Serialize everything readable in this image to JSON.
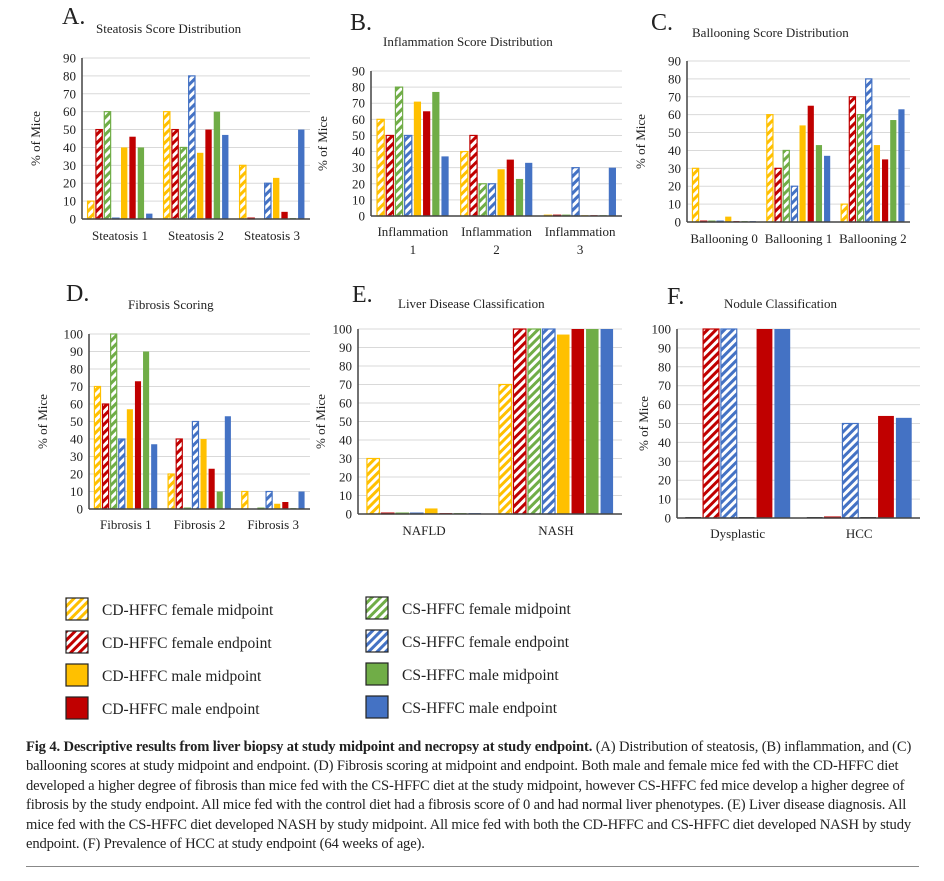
{
  "figure": {
    "caption_bold": "Fig 4. Descriptive results from liver biopsy at study midpoint and necropsy at study endpoint.",
    "caption_text": " (A) Distribution of steatosis, (B) inflammation, and (C) ballooning scores at study midpoint and endpoint. (D) Fibrosis scoring at midpoint and endpoint. Both male and female mice fed with the CD-HFFC diet developed a higher degree of fibrosis than mice fed with the CS-HFFC diet at the study midpoint, however CS-HFFC fed mice develop a higher degree of fibrosis by the study endpoint. All mice fed with the control diet had a fibrosis score of 0 and had normal liver phenotypes. (E) Liver disease diagnosis. All mice fed with the CS-HFFC diet developed NASH by study midpoint. All mice fed with both the CD-HFFC and CS-HFFC diet developed NASH by study endpoint. (F) Prevalence of HCC at study endpoint (64 weeks of age)."
  },
  "legend": [
    {
      "name": "CD-HFFC female midpoint",
      "color": "#FFC000",
      "hatched": true
    },
    {
      "name": "CD-HFFC female endpoint",
      "color": "#C00000",
      "hatched": true
    },
    {
      "name": "CD-HFFC male midpoint",
      "color": "#FFC000",
      "hatched": false
    },
    {
      "name": "CD-HFFC male endpoint",
      "color": "#C00000",
      "hatched": false
    },
    {
      "name": "CS-HFFC female midpoint",
      "color": "#70AD47",
      "hatched": true
    },
    {
      "name": "CS-HFFC female endpoint",
      "color": "#4472C4",
      "hatched": true
    },
    {
      "name": "CS-HFFC male midpoint",
      "color": "#70AD47",
      "hatched": false
    },
    {
      "name": "CS-HFFC male endpoint",
      "color": "#4472C4",
      "hatched": false
    }
  ],
  "chart_data": [
    {
      "panel": "A.",
      "type": "bar",
      "title": "Steatosis Score Distribution",
      "ylabel": "% of Mice",
      "xlabel": "",
      "ylim": [
        0,
        90
      ],
      "yticks": [
        0,
        10,
        20,
        30,
        40,
        50,
        60,
        70,
        80,
        90
      ],
      "grid": true,
      "categories": [
        [
          "Steatosis 1"
        ],
        [
          "Steatosis 2"
        ],
        [
          "Steatosis 3"
        ]
      ],
      "series": [
        {
          "name": "CD-HFFC female midpoint",
          "color": "#FFC000",
          "hatched": true,
          "values": [
            10,
            60,
            30
          ]
        },
        {
          "name": "CD-HFFC female endpoint",
          "color": "#C00000",
          "hatched": true,
          "values": [
            50,
            50,
            0.5
          ]
        },
        {
          "name": "CS-HFFC female midpoint",
          "color": "#70AD47",
          "hatched": true,
          "values": [
            60,
            40,
            0
          ]
        },
        {
          "name": "CS-HFFC female endpoint",
          "color": "#4472C4",
          "hatched": true,
          "values": [
            0.5,
            80,
            20
          ]
        },
        {
          "name": "CD-HFFC male midpoint",
          "color": "#FFC000",
          "hatched": false,
          "values": [
            40,
            37,
            23
          ]
        },
        {
          "name": "CD-HFFC male endpoint",
          "color": "#C00000",
          "hatched": false,
          "values": [
            46,
            50,
            4
          ]
        },
        {
          "name": "CS-HFFC male midpoint",
          "color": "#70AD47",
          "hatched": false,
          "values": [
            40,
            60,
            0.5
          ]
        },
        {
          "name": "CS-HFFC male endpoint",
          "color": "#4472C4",
          "hatched": false,
          "values": [
            3,
            47,
            50
          ]
        }
      ]
    },
    {
      "panel": "B.",
      "type": "bar",
      "title": "Inflammation Score Distribution",
      "ylabel": "% of Mice",
      "xlabel": "",
      "ylim": [
        0,
        90
      ],
      "yticks": [
        0,
        10,
        20,
        30,
        40,
        50,
        60,
        70,
        80,
        90
      ],
      "grid": true,
      "categories": [
        [
          "Inflammation",
          "1"
        ],
        [
          "Inflammation",
          "2"
        ],
        [
          "Inflammation",
          "3"
        ]
      ],
      "series": [
        {
          "name": "CD-HFFC female midpoint",
          "color": "#FFC000",
          "hatched": true,
          "values": [
            60,
            40,
            0.5
          ]
        },
        {
          "name": "CD-HFFC female endpoint",
          "color": "#C00000",
          "hatched": true,
          "values": [
            50,
            50,
            0.5
          ]
        },
        {
          "name": "CS-HFFC female midpoint",
          "color": "#70AD47",
          "hatched": true,
          "values": [
            80,
            20,
            0.5
          ]
        },
        {
          "name": "CS-HFFC female endpoint",
          "color": "#4472C4",
          "hatched": true,
          "values": [
            50,
            20,
            30
          ]
        },
        {
          "name": "CD-HFFC male midpoint",
          "color": "#FFC000",
          "hatched": false,
          "values": [
            71,
            29,
            0.5
          ]
        },
        {
          "name": "CD-HFFC male endpoint",
          "color": "#C00000",
          "hatched": false,
          "values": [
            65,
            35,
            0.5
          ]
        },
        {
          "name": "CS-HFFC male midpoint",
          "color": "#70AD47",
          "hatched": false,
          "values": [
            77,
            23,
            0.5
          ]
        },
        {
          "name": "CS-HFFC male endpoint",
          "color": "#4472C4",
          "hatched": false,
          "values": [
            37,
            33,
            30
          ]
        }
      ]
    },
    {
      "panel": "C.",
      "type": "bar",
      "title": "Ballooning Score Distribution",
      "ylabel": "% of Mice",
      "xlabel": "",
      "ylim": [
        0,
        90
      ],
      "yticks": [
        0,
        10,
        20,
        30,
        40,
        50,
        60,
        70,
        80,
        90
      ],
      "grid": true,
      "categories": [
        [
          "Ballooning 0"
        ],
        [
          "Ballooning 1"
        ],
        [
          "Ballooning 2"
        ]
      ],
      "series": [
        {
          "name": "CD-HFFC female midpoint",
          "color": "#FFC000",
          "hatched": true,
          "values": [
            30,
            60,
            10
          ]
        },
        {
          "name": "CD-HFFC female endpoint",
          "color": "#C00000",
          "hatched": true,
          "values": [
            0.5,
            30,
            70
          ]
        },
        {
          "name": "CS-HFFC female midpoint",
          "color": "#70AD47",
          "hatched": true,
          "values": [
            0.5,
            40,
            60
          ]
        },
        {
          "name": "CS-HFFC female endpoint",
          "color": "#4472C4",
          "hatched": true,
          "values": [
            0.5,
            20,
            80
          ]
        },
        {
          "name": "CD-HFFC male midpoint",
          "color": "#FFC000",
          "hatched": false,
          "values": [
            3,
            54,
            43
          ]
        },
        {
          "name": "CD-HFFC male endpoint",
          "color": "#C00000",
          "hatched": false,
          "values": [
            0.5,
            65,
            35
          ]
        },
        {
          "name": "CS-HFFC male midpoint",
          "color": "#70AD47",
          "hatched": false,
          "values": [
            0.5,
            43,
            57
          ]
        },
        {
          "name": "CS-HFFC male endpoint",
          "color": "#4472C4",
          "hatched": false,
          "values": [
            0.5,
            37,
            63
          ]
        }
      ]
    },
    {
      "panel": "D.",
      "type": "bar",
      "title": "Fibrosis Scoring",
      "ylabel": "% of Mice",
      "xlabel": "",
      "ylim": [
        0,
        100
      ],
      "yticks": [
        0,
        10,
        20,
        30,
        40,
        50,
        60,
        70,
        80,
        90,
        100
      ],
      "grid": true,
      "categories": [
        [
          "Fibrosis 1"
        ],
        [
          "Fibrosis 2"
        ],
        [
          "Fibrosis 3"
        ]
      ],
      "series": [
        {
          "name": "CD-HFFC female midpoint",
          "color": "#FFC000",
          "hatched": true,
          "values": [
            70,
            20,
            10
          ]
        },
        {
          "name": "CD-HFFC female endpoint",
          "color": "#C00000",
          "hatched": true,
          "values": [
            60,
            40,
            0
          ]
        },
        {
          "name": "CS-HFFC female midpoint",
          "color": "#70AD47",
          "hatched": true,
          "values": [
            100,
            0.5,
            0.5
          ]
        },
        {
          "name": "CS-HFFC female endpoint",
          "color": "#4472C4",
          "hatched": true,
          "values": [
            40,
            50,
            10
          ]
        },
        {
          "name": "CD-HFFC male midpoint",
          "color": "#FFC000",
          "hatched": false,
          "values": [
            57,
            40,
            3
          ]
        },
        {
          "name": "CD-HFFC male endpoint",
          "color": "#C00000",
          "hatched": false,
          "values": [
            73,
            23,
            4
          ]
        },
        {
          "name": "CS-HFFC male midpoint",
          "color": "#70AD47",
          "hatched": false,
          "values": [
            90,
            10,
            0.5
          ]
        },
        {
          "name": "CS-HFFC male endpoint",
          "color": "#4472C4",
          "hatched": false,
          "values": [
            37,
            53,
            10
          ]
        }
      ]
    },
    {
      "panel": "E.",
      "type": "bar",
      "title": "Liver Disease Classification",
      "ylabel": "% of Mice",
      "xlabel": "",
      "ylim": [
        0,
        100
      ],
      "yticks": [
        0,
        10,
        20,
        30,
        40,
        50,
        60,
        70,
        80,
        90,
        100
      ],
      "grid": true,
      "categories": [
        [
          "NAFLD"
        ],
        [
          "NASH"
        ]
      ],
      "series": [
        {
          "name": "CD-HFFC female midpoint",
          "color": "#FFC000",
          "hatched": true,
          "values": [
            30,
            70
          ]
        },
        {
          "name": "CD-HFFC female endpoint",
          "color": "#C00000",
          "hatched": true,
          "values": [
            0.5,
            100
          ]
        },
        {
          "name": "CS-HFFC female midpoint",
          "color": "#70AD47",
          "hatched": true,
          "values": [
            0.5,
            100
          ]
        },
        {
          "name": "CS-HFFC female endpoint",
          "color": "#4472C4",
          "hatched": true,
          "values": [
            0.5,
            100
          ]
        },
        {
          "name": "CD-HFFC male midpoint",
          "color": "#FFC000",
          "hatched": false,
          "values": [
            3,
            97
          ]
        },
        {
          "name": "CD-HFFC male endpoint",
          "color": "#C00000",
          "hatched": false,
          "values": [
            0.5,
            100
          ]
        },
        {
          "name": "CS-HFFC male midpoint",
          "color": "#70AD47",
          "hatched": false,
          "values": [
            0.5,
            100
          ]
        },
        {
          "name": "CS-HFFC male endpoint",
          "color": "#4472C4",
          "hatched": false,
          "values": [
            0.5,
            100
          ]
        }
      ]
    },
    {
      "panel": "F.",
      "type": "bar",
      "title": "Nodule Classification",
      "ylabel": "% of Mice",
      "xlabel": "",
      "ylim": [
        0,
        100
      ],
      "yticks": [
        0,
        10,
        20,
        30,
        40,
        50,
        60,
        70,
        80,
        90,
        100
      ],
      "grid": true,
      "categories": [
        [
          "Dysplastic"
        ],
        [
          "HCC"
        ]
      ],
      "series": [
        {
          "name": "",
          "color": "#222222",
          "hatched": false,
          "values": [
            0.5,
            0.5
          ]
        },
        {
          "name": "CD-HFFC female endpoint",
          "color": "#C00000",
          "hatched": true,
          "values": [
            100,
            0.5
          ]
        },
        {
          "name": "CS-HFFC female endpoint",
          "color": "#4472C4",
          "hatched": true,
          "values": [
            100,
            50
          ]
        },
        {
          "name": "",
          "color": "#222222",
          "hatched": false,
          "values": [
            0.5,
            0.5
          ]
        },
        {
          "name": "CD-HFFC male endpoint",
          "color": "#C00000",
          "hatched": false,
          "values": [
            100,
            54
          ]
        },
        {
          "name": "CS-HFFC male endpoint",
          "color": "#4472C4",
          "hatched": false,
          "values": [
            100,
            53
          ]
        }
      ]
    }
  ]
}
